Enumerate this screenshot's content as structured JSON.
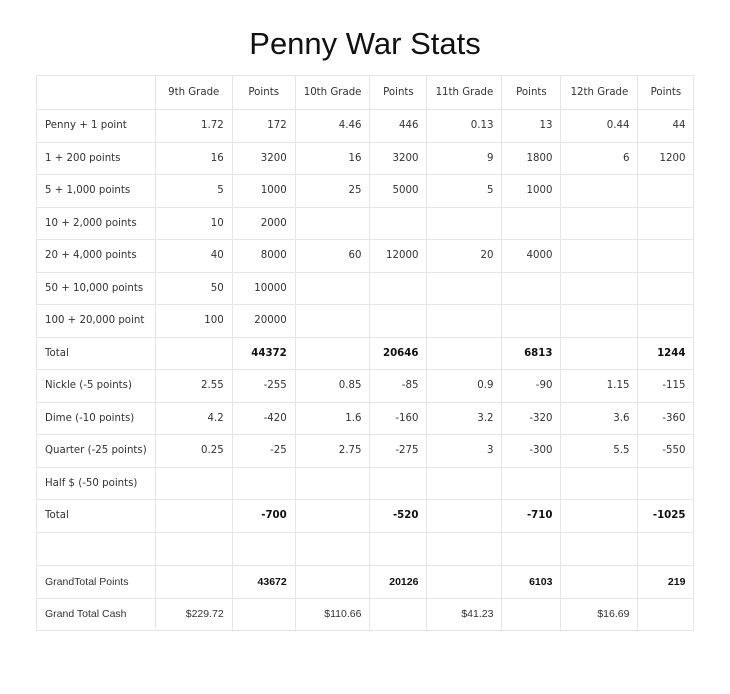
{
  "title": "Penny War Stats",
  "table": {
    "headers": [
      "",
      "9th Grade",
      "Points",
      "10th Grade",
      "Points",
      "11th Grade",
      "Points",
      "12th Grade",
      "Points"
    ],
    "rows": [
      {
        "label": "Penny + 1 point",
        "cells": [
          "1.72",
          "172",
          "4.46",
          "446",
          "0.13",
          "13",
          "0.44",
          "44"
        ]
      },
      {
        "label": "1  + 200 points",
        "cells": [
          "16",
          "3200",
          "16",
          "3200",
          "9",
          "1800",
          "6",
          "1200"
        ]
      },
      {
        "label": "5 + 1,000 points",
        "cells": [
          "5",
          "1000",
          "25",
          "5000",
          "5",
          "1000",
          "",
          ""
        ]
      },
      {
        "label": "10 + 2,000 points",
        "cells": [
          "10",
          "2000",
          "",
          "",
          "",
          "",
          "",
          ""
        ]
      },
      {
        "label": "20 + 4,000 points",
        "cells": [
          "40",
          "8000",
          "60",
          "12000",
          "20",
          "4000",
          "",
          ""
        ]
      },
      {
        "label": "50 + 10,000 points",
        "cells": [
          "50",
          "10000",
          "",
          "",
          "",
          "",
          "",
          ""
        ]
      },
      {
        "label": "100 + 20,000 point",
        "cells": [
          "100",
          "20000",
          "",
          "",
          "",
          "",
          "",
          ""
        ]
      },
      {
        "label": "Total",
        "cells": [
          "",
          "44372",
          "",
          "20646",
          "",
          "6813",
          "",
          "1244"
        ],
        "bold": true
      },
      {
        "label": "Nickle (-5 points)",
        "cells": [
          "2.55",
          "-255",
          "0.85",
          "-85",
          "0.9",
          "-90",
          "1.15",
          "-115"
        ]
      },
      {
        "label": "Dime (-10 points)",
        "cells": [
          "4.2",
          "-420",
          "1.6",
          "-160",
          "3.2",
          "-320",
          "3.6",
          "-360"
        ]
      },
      {
        "label": "Quarter (-25 points)",
        "cells": [
          "0.25",
          "-25",
          "2.75",
          "-275",
          "3",
          "-300",
          "5.5",
          "-550"
        ]
      },
      {
        "label": "Half $ (-50 points)",
        "cells": [
          "",
          "",
          "",
          "",
          "",
          "",
          "",
          ""
        ]
      },
      {
        "label": "Total",
        "cells": [
          "",
          "-700",
          "",
          "-520",
          "",
          "-710",
          "",
          "-1025"
        ],
        "bold": true
      },
      {
        "label": "",
        "cells": [
          "",
          "",
          "",
          "",
          "",
          "",
          "",
          ""
        ]
      },
      {
        "label": "GrandTotal Points",
        "cells": [
          "",
          "43672",
          "",
          "20126",
          "",
          "6103",
          "",
          "219"
        ],
        "bold": true
      },
      {
        "label": "Grand Total Cash",
        "cells": [
          "$229.72",
          "",
          "$110.66",
          "",
          "$41.23",
          "",
          "$16.69",
          ""
        ]
      }
    ]
  }
}
